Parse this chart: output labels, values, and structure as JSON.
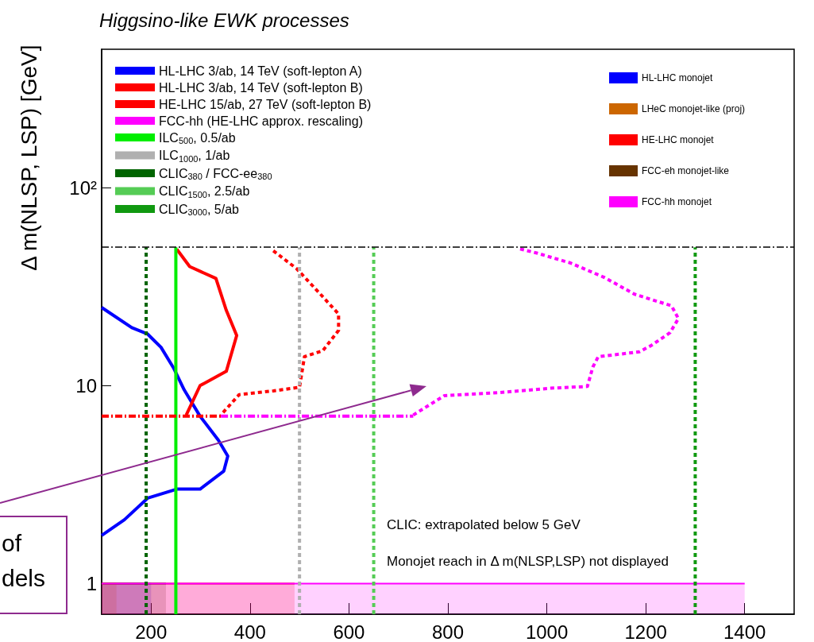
{
  "chart_data": {
    "type": "line",
    "title": "Higgsino-like EWK processes",
    "ylabel": "Δ m(NLSP, LSP) [GeV]",
    "xlim": [
      100,
      1500
    ],
    "xticks": [
      200,
      400,
      600,
      800,
      1000,
      1200,
      1400
    ],
    "ylim": [
      0.7,
      500
    ],
    "yticks": [
      1,
      10,
      {
        "value": 100,
        "label": "10²"
      }
    ],
    "log": true,
    "legend": "top",
    "series": [
      {
        "name": "HL-LHC 3/ab, 14 TeV (soft-lepton A)",
        "color": "#0000ff",
        "line_style": "solid",
        "x": [
          100,
          161,
          193,
          220,
          246,
          267,
          299,
          336,
          355,
          347,
          299,
          252,
          193,
          146,
          100
        ],
        "values": [
          24.8,
          19.6,
          18.2,
          15.6,
          12.2,
          9.5,
          7.0,
          5.3,
          4.4,
          3.7,
          3.0,
          3.0,
          2.7,
          2.1,
          1.75
        ]
      },
      {
        "name": "HL-LHC 3/ab, 14 TeV (soft-lepton B)",
        "color": "#ff0000",
        "line_style": "solid",
        "x": [
          252,
          278,
          331,
          352,
          373,
          352,
          299,
          271
        ],
        "values": [
          48.8,
          39.9,
          34.8,
          24.0,
          17.9,
          11.8,
          10.0,
          7.1
        ]
      },
      {
        "name": "HE-LHC 15/ab, 27 TeV (soft-lepton B)",
        "color": "#ff0000",
        "line_style": "dotted",
        "x": [
          447,
          494,
          542,
          579,
          579,
          547,
          510,
          500,
          447,
          378,
          341
        ],
        "values": [
          48,
          39,
          29,
          23,
          19,
          15,
          14,
          9.8,
          9.4,
          9.0,
          7.1
        ]
      },
      {
        "name": "FCC-hh (HE-LHC approx. rescaling)",
        "color": "#ff00ff",
        "line_style": "dotted",
        "x": [
          946,
          980,
          1048,
          1116,
          1178,
          1252,
          1266,
          1249,
          1212,
          1187,
          1104,
          1093,
          1082,
          1008,
          900,
          793,
          730
        ],
        "values": [
          49,
          46.7,
          41.6,
          35.2,
          28.9,
          25.3,
          21.8,
          18.5,
          16,
          14.8,
          14,
          12.4,
          9.9,
          9.7,
          9.2,
          8.9,
          7.1
        ]
      },
      {
        "name": "ILC$_{500}$, 0.5/ab",
        "color": "#00ee00",
        "line_style": "solid",
        "x": [
          250,
          250
        ],
        "values": [
          0.7,
          50
        ]
      },
      {
        "name": "ILC$_{1000}$, 1/ab",
        "color": "#b0b0b0",
        "line_style": "dotted",
        "x": [
          500,
          500
        ],
        "values": [
          0.7,
          50
        ]
      },
      {
        "name": "CLIC$_{380}$ / FCC-ee$_{380}$",
        "color": "#006400",
        "line_style": "dotted",
        "x": [
          190,
          190
        ],
        "values": [
          0.7,
          50
        ]
      },
      {
        "name": "CLIC$_{1500}$, 2.5/ab",
        "color": "#55cc55",
        "line_style": "dotted",
        "x": [
          650,
          650
        ],
        "values": [
          0.7,
          50
        ]
      },
      {
        "name": "CLIC$_{3000}$, 5/ab",
        "color": "#109910",
        "line_style": "dotted",
        "x": [
          1300,
          1300
        ],
        "values": [
          0.7,
          50
        ]
      },
      {
        "color": "#ff0000",
        "line_style": "dashed",
        "x": [
          100,
          341
        ],
        "values": [
          7.0,
          7.0
        ]
      },
      {
        "color": "#ff00ff",
        "line_style": "dashed",
        "x": [
          341,
          730
        ],
        "values": [
          7.0,
          7.0
        ]
      },
      {
        "name": "HL-LHC monojet",
        "type": "area",
        "color": "#0000ff",
        "x": [
          100,
          200
        ],
        "values": [
          1,
          1
        ]
      },
      {
        "name": "LHeC monojet-like (proj)",
        "type": "area",
        "color": "#cc6600",
        "x": [
          100,
          130
        ],
        "values": [
          1,
          1
        ]
      },
      {
        "name": "HE-LHC monojet",
        "type": "area",
        "color": "#ff0000",
        "x": [
          100,
          490
        ],
        "values": [
          1,
          1
        ]
      },
      {
        "name": "FCC-eh monojet-like",
        "type": "area",
        "color": "#663300",
        "x": [
          100,
          230
        ],
        "values": [
          1,
          1
        ]
      },
      {
        "name": "FCC-hh monojet",
        "type": "area",
        "color": "#ff00ff",
        "x": [
          100,
          1400
        ],
        "values": [
          1,
          1
        ]
      }
    ],
    "ref_lines": [
      {
        "axis": "y",
        "value": 50,
        "color": "#000000",
        "line_style": "dashed"
      }
    ],
    "annotations": [
      "CLIC: extrapolated below 5 GeV",
      "Monojet reach in Δ m(NLSP,LSP) not displayed",
      "of\ndels"
    ]
  }
}
